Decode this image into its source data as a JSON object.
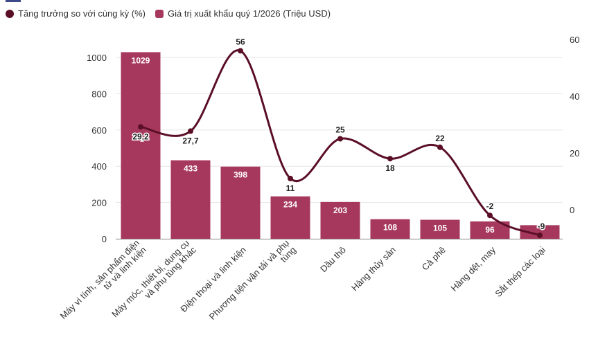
{
  "colors": {
    "bar": "#a7385d",
    "line": "#5a0f26",
    "grid": "#e6e6e6",
    "axis_text": "#333333",
    "bar_label": "#ffffff"
  },
  "legend": {
    "line_label": "Tăng trưởng so với cùng kỳ (%)",
    "bar_label": "Giá trị xuất khẩu quý 1/2026 (Triệu USD)"
  },
  "chart_data": {
    "type": "bar",
    "categories": [
      "Máy vi tính, sản phẩm điện tử và linh kiện",
      "Máy móc, thiết bị, dụng cụ và phụ tùng khác",
      "Điện thoại và linh kiện",
      "Phương tiện vận tải và phụ tùng",
      "Dầu thô",
      "Hàng thủy sản",
      "Cà phê",
      "Hàng dệt, may",
      "Sắt thép các loại"
    ],
    "category_lines": [
      [
        "Máy vi tính, sản phẩm điện",
        "tử và linh kiện"
      ],
      [
        "Máy móc, thiết bị, dụng cụ",
        "và phụ tùng khác"
      ],
      [
        "Điện thoại và linh kiện"
      ],
      [
        "Phương tiện vận tải và phụ",
        "tùng"
      ],
      [
        "Dầu thô"
      ],
      [
        "Hàng thủy sản"
      ],
      [
        "Cà phê"
      ],
      [
        "Hàng dệt, may"
      ],
      [
        "Sắt thép các loại"
      ]
    ],
    "series": [
      {
        "name": "Giá trị xuất khẩu quý 1/2026 (Triệu USD)",
        "type": "bar",
        "axis": "left",
        "values": [
          1029,
          433,
          398,
          234,
          203,
          108,
          105,
          96,
          75
        ],
        "labels": [
          "1029",
          "433",
          "398",
          "234",
          "203",
          "108",
          "105",
          "96",
          ""
        ]
      },
      {
        "name": "Tăng trưởng so với cùng kỳ (%)",
        "type": "line",
        "axis": "right",
        "values": [
          29.2,
          27.7,
          56,
          11,
          25,
          18,
          22,
          -2,
          -9
        ],
        "labels": [
          "29,2",
          "27,7",
          "56",
          "11",
          "25",
          "18",
          "22",
          "-2",
          "-9"
        ]
      }
    ],
    "y_left": {
      "min": 0,
      "max": 1000,
      "ticks": [
        0,
        200,
        400,
        600,
        800,
        1000
      ]
    },
    "y_right": {
      "min": -10,
      "max": 60,
      "ticks": [
        0,
        20,
        40,
        60
      ]
    },
    "grid": true,
    "legend_position": "top-left"
  }
}
